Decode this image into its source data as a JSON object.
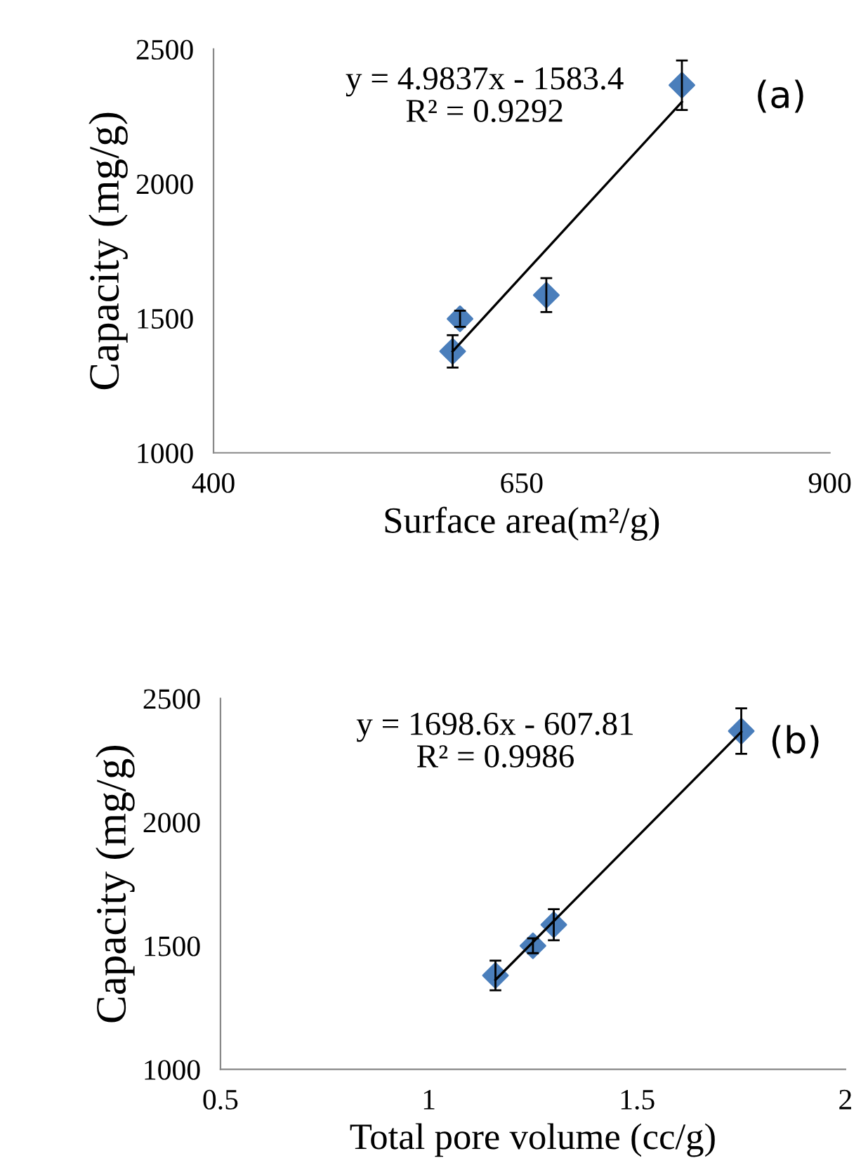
{
  "chart_data": [
    {
      "type": "scatter",
      "xlabel": "Surface area(m²/g)",
      "ylabel": "Capacity (mg/g)",
      "xlim": [
        400,
        900
      ],
      "xticks": [
        400,
        650,
        900
      ],
      "ylim": [
        1000,
        2500
      ],
      "yticks": [
        1000,
        1500,
        2000,
        2500
      ],
      "marker": "diamond",
      "grid": false,
      "legend": false,
      "annotations": [
        "y = 4.9837x - 1583.4\nR² = 0.9292",
        "(a)"
      ],
      "series": [
        {
          "color": "#4a7ebb",
          "x": [
            594,
            600,
            670,
            780
          ],
          "values": [
            1377,
            1498,
            1586,
            2366
          ],
          "errors": [
            60,
            30,
            63,
            92
          ]
        },
        {
          "type": "line",
          "color": "#000000",
          "marker": "none",
          "x": [
            594,
            780
          ],
          "values": [
            1377,
            2304
          ]
        }
      ]
    },
    {
      "type": "scatter",
      "xlabel": "Total pore volume (cc/g)",
      "ylabel": "Capacity (mg/g)",
      "xlim": [
        0.5,
        2
      ],
      "xticks": [
        0.5,
        1,
        1.5,
        2
      ],
      "ylim": [
        1000,
        2500
      ],
      "yticks": [
        1000,
        1500,
        2000,
        2500
      ],
      "marker": "diamond",
      "grid": false,
      "legend": false,
      "annotations": [
        "y = 1698.6x - 607.81\nR² = 0.9986",
        "(b)"
      ],
      "series": [
        {
          "color": "#4a7ebb",
          "x": [
            1.16,
            1.25,
            1.3,
            1.75
          ],
          "values": [
            1380,
            1500,
            1585,
            2368
          ],
          "errors": [
            60,
            30,
            63,
            92
          ]
        },
        {
          "type": "line",
          "color": "#000000",
          "marker": "none",
          "x": [
            1.16,
            1.75
          ],
          "values": [
            1362,
            2365
          ]
        }
      ]
    }
  ]
}
